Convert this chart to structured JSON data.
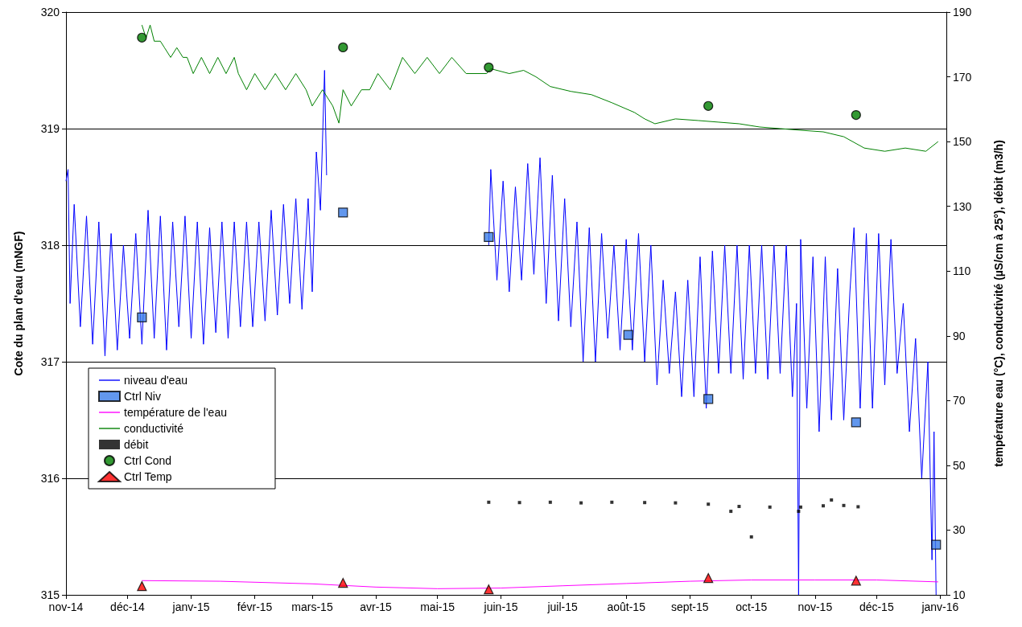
{
  "chart_data": {
    "type": "line",
    "ylabel": "Cote du plan d'eau (mNGF)",
    "y2label": "température eau (°C), conductivité (µS/cm à 25°), débit (m3/h)",
    "xlim": [
      "2014-11-01",
      "2016-01-04"
    ],
    "xticks": [
      {
        "value": "2014-11-01",
        "label": "nov-14"
      },
      {
        "value": "2014-12-01",
        "label": "déc-14"
      },
      {
        "value": "2015-01-01",
        "label": "janv-15"
      },
      {
        "value": "2015-02-01",
        "label": "févr-15"
      },
      {
        "value": "2015-03-01",
        "label": "mars-15"
      },
      {
        "value": "2015-04-01",
        "label": "avr-15"
      },
      {
        "value": "2015-05-01",
        "label": "mai-15"
      },
      {
        "value": "2015-06-01",
        "label": "juin-15"
      },
      {
        "value": "2015-07-01",
        "label": "juil-15"
      },
      {
        "value": "2015-08-01",
        "label": "août-15"
      },
      {
        "value": "2015-09-01",
        "label": "sept-15"
      },
      {
        "value": "2015-10-01",
        "label": "oct-15"
      },
      {
        "value": "2015-11-01",
        "label": "nov-15"
      },
      {
        "value": "2015-12-01",
        "label": "déc-15"
      },
      {
        "value": "2016-01-01",
        "label": "janv-16"
      }
    ],
    "ylim": [
      315,
      320
    ],
    "yticks": [
      315,
      316,
      317,
      318,
      319,
      320
    ],
    "y2lim": [
      10,
      190
    ],
    "y2ticks": [
      10,
      30,
      50,
      70,
      90,
      110,
      130,
      150,
      170,
      190
    ],
    "grid": "y",
    "legend": "bottom left",
    "series": [
      {
        "name": "niveau d'eau",
        "marker": "none",
        "color": "#0000ff",
        "x": [
          "2014-11-01",
          "2014-11-02",
          "2014-11-03",
          "2014-11-05",
          "2014-11-08",
          "2014-11-11",
          "2014-11-14",
          "2014-11-17",
          "2014-11-20",
          "2014-11-23",
          "2014-11-26",
          "2014-11-29",
          "2014-12-02",
          "2014-12-05",
          "2014-12-08",
          "2014-12-11",
          "2014-12-14",
          "2014-12-17",
          "2014-12-20",
          "2014-12-23",
          "2014-12-26",
          "2014-12-29",
          "2015-01-01",
          "2015-01-04",
          "2015-01-07",
          "2015-01-10",
          "2015-01-13",
          "2015-01-16",
          "2015-01-19",
          "2015-01-22",
          "2015-01-25",
          "2015-01-28",
          "2015-01-31",
          "2015-02-03",
          "2015-02-06",
          "2015-02-09",
          "2015-02-12",
          "2015-02-15",
          "2015-02-18",
          "2015-02-21",
          "2015-02-24",
          "2015-02-27",
          "2015-03-01",
          "2015-03-03",
          "2015-03-05",
          "2015-03-07",
          "2015-03-08",
          "2015-04-15",
          "2015-05-26",
          "2015-05-27",
          "2015-05-30",
          "2015-06-02",
          "2015-06-05",
          "2015-06-08",
          "2015-06-11",
          "2015-06-14",
          "2015-06-17",
          "2015-06-20",
          "2015-06-23",
          "2015-06-26",
          "2015-06-29",
          "2015-07-02",
          "2015-07-05",
          "2015-07-08",
          "2015-07-11",
          "2015-07-14",
          "2015-07-17",
          "2015-07-20",
          "2015-07-23",
          "2015-07-26",
          "2015-07-29",
          "2015-08-01",
          "2015-08-04",
          "2015-08-07",
          "2015-08-10",
          "2015-08-13",
          "2015-08-16",
          "2015-08-19",
          "2015-08-22",
          "2015-08-25",
          "2015-08-28",
          "2015-08-31",
          "2015-09-03",
          "2015-09-06",
          "2015-09-09",
          "2015-09-12",
          "2015-09-15",
          "2015-09-18",
          "2015-09-21",
          "2015-09-24",
          "2015-09-27",
          "2015-09-30",
          "2015-10-03",
          "2015-10-06",
          "2015-10-09",
          "2015-10-12",
          "2015-10-15",
          "2015-10-18",
          "2015-10-21",
          "2015-10-23",
          "2015-10-24",
          "2015-10-25",
          "2015-10-28",
          "2015-10-31",
          "2015-11-03",
          "2015-11-06",
          "2015-11-09",
          "2015-11-12",
          "2015-11-15",
          "2015-11-18",
          "2015-11-20",
          "2015-11-23",
          "2015-11-26",
          "2015-11-29",
          "2015-12-02",
          "2015-12-05",
          "2015-12-08",
          "2015-12-11",
          "2015-12-14",
          "2015-12-17",
          "2015-12-20",
          "2015-12-23",
          "2015-12-26",
          "2015-12-28",
          "2015-12-29",
          "2015-12-30"
        ],
        "values": [
          318.55,
          318.65,
          317.5,
          318.35,
          317.3,
          318.25,
          317.15,
          318.2,
          317.05,
          318.1,
          317.1,
          318.0,
          317.2,
          318.1,
          317.15,
          318.3,
          317.2,
          318.25,
          317.1,
          318.2,
          317.3,
          318.25,
          317.2,
          318.2,
          317.15,
          318.15,
          317.25,
          318.2,
          317.2,
          318.2,
          317.3,
          318.2,
          317.3,
          318.2,
          317.35,
          318.3,
          317.4,
          318.35,
          317.5,
          318.4,
          317.45,
          318.4,
          317.6,
          318.8,
          318.3,
          319.5,
          318.6,
          null,
          318.0,
          318.65,
          317.7,
          318.55,
          317.6,
          318.5,
          317.7,
          318.7,
          317.75,
          318.75,
          317.5,
          318.6,
          317.35,
          318.4,
          317.3,
          318.2,
          317.0,
          318.15,
          317.0,
          318.1,
          317.2,
          318.0,
          317.1,
          318.05,
          317.1,
          318.1,
          317.0,
          318.0,
          316.8,
          317.7,
          316.9,
          317.6,
          316.7,
          317.7,
          316.7,
          317.9,
          316.6,
          317.95,
          316.9,
          318.0,
          316.9,
          318.0,
          316.85,
          318.0,
          316.9,
          318.0,
          316.85,
          318.0,
          316.9,
          318.0,
          316.7,
          317.5,
          315.0,
          318.05,
          316.6,
          317.9,
          316.4,
          317.9,
          316.5,
          317.8,
          316.5,
          317.6,
          318.15,
          316.6,
          318.1,
          316.6,
          318.1,
          316.8,
          318.05,
          316.9,
          317.5,
          316.4,
          317.2,
          316.0,
          317.0,
          315.3,
          316.4,
          315.0
        ]
      },
      {
        "name": "Ctrl Niv",
        "type": "scatter",
        "marker": "square",
        "color": "#3b7de8",
        "x": [
          "2014-12-08",
          "2015-03-16",
          "2015-05-26",
          "2015-08-02",
          "2015-09-10",
          "2015-11-21",
          "2015-12-30"
        ],
        "values": [
          317.38,
          318.28,
          318.07,
          317.23,
          316.68,
          316.48,
          315.43
        ]
      },
      {
        "name": "température de l'eau",
        "marker": "none",
        "axis": "y2",
        "color": "#ff00ff",
        "x": [
          "2014-12-08",
          "2015-01-15",
          "2015-03-01",
          "2015-04-01",
          "2015-05-01",
          "2015-06-01",
          "2015-07-01",
          "2015-08-01",
          "2015-09-01",
          "2015-10-01",
          "2015-11-01",
          "2015-12-01",
          "2015-12-31"
        ],
        "values": [
          14.4,
          14.2,
          13.4,
          12.4,
          11.9,
          12.1,
          12.8,
          13.5,
          14.2,
          14.6,
          14.6,
          14.6,
          14.0
        ]
      },
      {
        "name": "conductivité",
        "marker": "none",
        "axis": "y2",
        "color": "#008000",
        "x": [
          "2014-12-08",
          "2014-12-10",
          "2014-12-12",
          "2014-12-14",
          "2014-12-17",
          "2014-12-19",
          "2014-12-22",
          "2014-12-25",
          "2014-12-28",
          "2014-12-30",
          "2015-01-02",
          "2015-01-06",
          "2015-01-10",
          "2015-01-14",
          "2015-01-18",
          "2015-01-22",
          "2015-01-24",
          "2015-01-28",
          "2015-02-01",
          "2015-02-06",
          "2015-02-11",
          "2015-02-16",
          "2015-02-21",
          "2015-02-26",
          "2015-03-01",
          "2015-03-06",
          "2015-03-11",
          "2015-03-14",
          "2015-03-16",
          "2015-03-20",
          "2015-03-25",
          "2015-03-29",
          "2015-04-02",
          "2015-04-08",
          "2015-04-14",
          "2015-04-20",
          "2015-04-26",
          "2015-05-02",
          "2015-05-08",
          "2015-05-15",
          "2015-05-25",
          "2015-05-27",
          "2015-06-05",
          "2015-06-12",
          "2015-06-18",
          "2015-06-25",
          "2015-07-05",
          "2015-07-15",
          "2015-07-25",
          "2015-08-05",
          "2015-08-10",
          "2015-08-15",
          "2015-08-25",
          "2015-09-05",
          "2015-09-15",
          "2015-09-25",
          "2015-10-05",
          "2015-10-15",
          "2015-10-25",
          "2015-11-05",
          "2015-11-15",
          "2015-11-25",
          "2015-12-05",
          "2015-12-15",
          "2015-12-25",
          "2015-12-31"
        ],
        "values": [
          186,
          182,
          186,
          181,
          181,
          179,
          176,
          179,
          176,
          176,
          171,
          176,
          171,
          176,
          171,
          176,
          171,
          166,
          171,
          166,
          171,
          166,
          171,
          166,
          161,
          166,
          161,
          155.7,
          166,
          161,
          166,
          166,
          171,
          166,
          176,
          171,
          176,
          171,
          176,
          171,
          171,
          172.5,
          171,
          172,
          170,
          167,
          165.5,
          164.5,
          162,
          159,
          157,
          155.5,
          157,
          156.5,
          156,
          155.5,
          154.5,
          154,
          153.5,
          153,
          151.5,
          148,
          147,
          148,
          147,
          150
        ]
      },
      {
        "name": "débit",
        "type": "scatter",
        "marker": "square",
        "axis": "y2",
        "color": "#000000",
        "x": [
          "2015-05-26",
          "2015-06-10",
          "2015-06-25",
          "2015-07-10",
          "2015-07-25",
          "2015-08-10",
          "2015-08-25",
          "2015-09-10",
          "2015-09-21",
          "2015-09-25",
          "2015-10-01",
          "2015-10-10",
          "2015-10-24",
          "2015-10-25",
          "2015-11-05",
          "2015-11-09",
          "2015-11-15",
          "2015-11-22"
        ],
        "values": [
          38.6,
          38.5,
          38.6,
          38.4,
          38.6,
          38.5,
          38.4,
          38.0,
          35.8,
          37.3,
          27.9,
          37.1,
          35.8,
          37.1,
          37.5,
          39.3,
          37.6,
          37.2
        ]
      },
      {
        "name": "Ctrl Cond",
        "type": "scatter",
        "marker": "circle",
        "axis": "y2",
        "color": "#008000",
        "x": [
          "2014-12-08",
          "2015-03-16",
          "2015-05-26",
          "2015-09-10",
          "2015-11-21"
        ],
        "values": [
          182.1,
          179.1,
          172.9,
          161,
          158.2
        ]
      },
      {
        "name": "Ctrl Temp",
        "type": "scatter",
        "marker": "triangle",
        "axis": "y2",
        "color": "#ff0000",
        "x": [
          "2014-12-08",
          "2015-03-16",
          "2015-05-26",
          "2015-09-10",
          "2015-11-21"
        ],
        "values": [
          12.7,
          13.7,
          11.7,
          15.2,
          14.4
        ]
      }
    ]
  }
}
